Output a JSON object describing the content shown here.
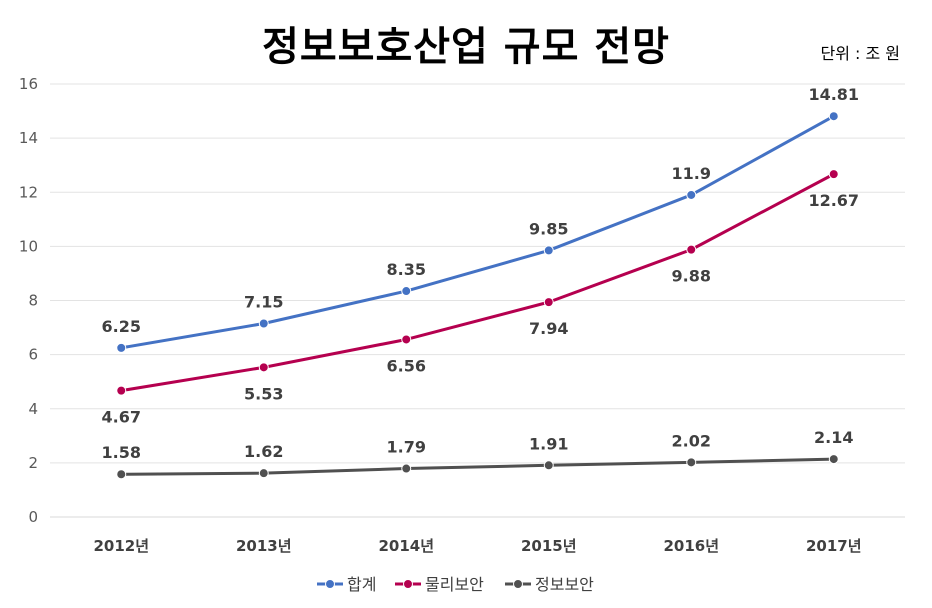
{
  "title": "정보보호산업 규모 전망",
  "unit_label": "단위 : 조 원",
  "chart_data": {
    "type": "line",
    "title": "정보보호산업 규모 전망",
    "categories": [
      "2012년",
      "2013년",
      "2014년",
      "2015년",
      "2016년",
      "2017년"
    ],
    "ylim": [
      0,
      16
    ],
    "yticks": [
      0,
      2,
      4,
      6,
      8,
      10,
      12,
      14,
      16
    ],
    "grid": true,
    "legend_position": "bottom",
    "series": [
      {
        "name": "합계",
        "color": "#4472c4",
        "values": [
          6.25,
          7.15,
          8.35,
          9.85,
          11.9,
          14.81
        ],
        "labels": [
          "6.25",
          "7.15",
          "8.35",
          "9.85",
          "11.9",
          "14.81"
        ],
        "label_position": "above"
      },
      {
        "name": "물리보안",
        "color": "#b5004f",
        "values": [
          4.67,
          5.53,
          6.56,
          7.94,
          9.88,
          12.67
        ],
        "labels": [
          "4.67",
          "5.53",
          "6.56",
          "7.94",
          "9.88",
          "12.67"
        ],
        "label_position": "below"
      },
      {
        "name": "정보보안",
        "color": "#505050",
        "values": [
          1.58,
          1.62,
          1.79,
          1.91,
          2.02,
          2.14
        ],
        "labels": [
          "1.58",
          "1.62",
          "1.79",
          "1.91",
          "2.02",
          "2.14"
        ],
        "label_position": "above"
      }
    ]
  }
}
